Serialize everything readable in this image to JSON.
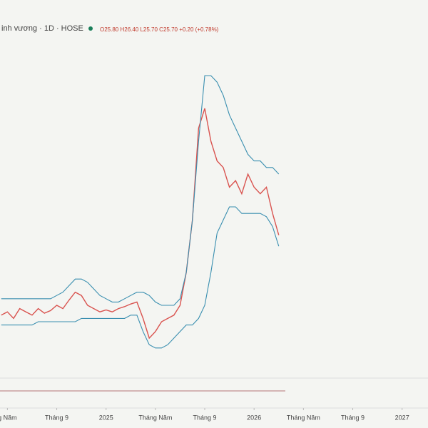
{
  "header": {
    "symbol": "inh vương · 1D · HOSE",
    "ohlc": "O25.80 H26.40 L25.70 C25.70 +0.20 (+0.78%)"
  },
  "chart_data": {
    "type": "line",
    "x": [
      -0.5,
      0,
      0.5,
      1,
      1.5,
      2,
      2.5,
      3,
      3.5,
      4,
      4.5,
      5,
      5.5,
      6,
      6.5,
      7,
      7.5,
      8,
      8.5,
      9,
      9.5,
      10,
      10.5,
      11,
      11.5,
      12,
      12.5,
      13,
      13.5,
      14,
      14.5,
      15,
      15.5,
      16,
      16.5,
      17,
      17.5,
      18,
      18.5,
      19,
      19.5,
      20,
      20.5,
      21,
      21.5,
      22
    ],
    "series": [
      {
        "color": "#d9534f",
        "values": [
          13.5,
          14,
          13,
          14.5,
          14,
          13.5,
          14.5,
          13.8,
          14.2,
          15,
          14.5,
          15.8,
          17,
          16.5,
          15,
          14.5,
          14,
          14.3,
          14,
          14.5,
          14.8,
          15.2,
          15.5,
          13,
          10,
          11,
          12.5,
          13,
          13.5,
          15,
          20,
          28,
          42,
          45,
          40,
          37,
          36,
          33,
          34,
          32,
          35,
          33,
          32,
          33,
          29,
          25.7
        ]
      },
      {
        "color": "#3a8fb0",
        "values": [
          16,
          16,
          16,
          16,
          16,
          16,
          16,
          16,
          16,
          16.5,
          17,
          18,
          19,
          19,
          18.5,
          17.5,
          16.5,
          16,
          15.5,
          15.5,
          16,
          16.5,
          17,
          17,
          16.5,
          15.5,
          15,
          15,
          15,
          16,
          20,
          28,
          40,
          50,
          50,
          49,
          47,
          44,
          42,
          40,
          38,
          37,
          37,
          36,
          36,
          35
        ]
      },
      {
        "color": "#3a8fb0",
        "values": [
          12,
          12,
          12,
          12,
          12,
          12,
          12.5,
          12.5,
          12.5,
          12.5,
          12.5,
          12.5,
          12.5,
          13,
          13,
          13,
          13,
          13,
          13,
          13,
          13,
          13.5,
          13.5,
          11,
          9,
          8.5,
          8.5,
          9,
          10,
          11,
          12,
          12,
          13,
          15,
          20,
          26,
          28,
          30,
          30,
          29,
          29,
          29,
          29,
          28.5,
          27,
          24
        ]
      }
    ],
    "xlim": [
      -0.6,
      34.1
    ],
    "ylim": [
      5,
      55
    ],
    "xticks": [
      {
        "value": 0,
        "label": "g Năm"
      },
      {
        "value": 4,
        "label": "Tháng 9"
      },
      {
        "value": 8,
        "label": "2025"
      },
      {
        "value": 12,
        "label": "Tháng Năm"
      },
      {
        "value": 16,
        "label": "Tháng 9"
      },
      {
        "value": 20,
        "label": "2026"
      },
      {
        "value": 24,
        "label": "Tháng Năm"
      },
      {
        "value": 28,
        "label": "Tháng 9"
      },
      {
        "value": 32,
        "label": "2027"
      }
    ]
  }
}
